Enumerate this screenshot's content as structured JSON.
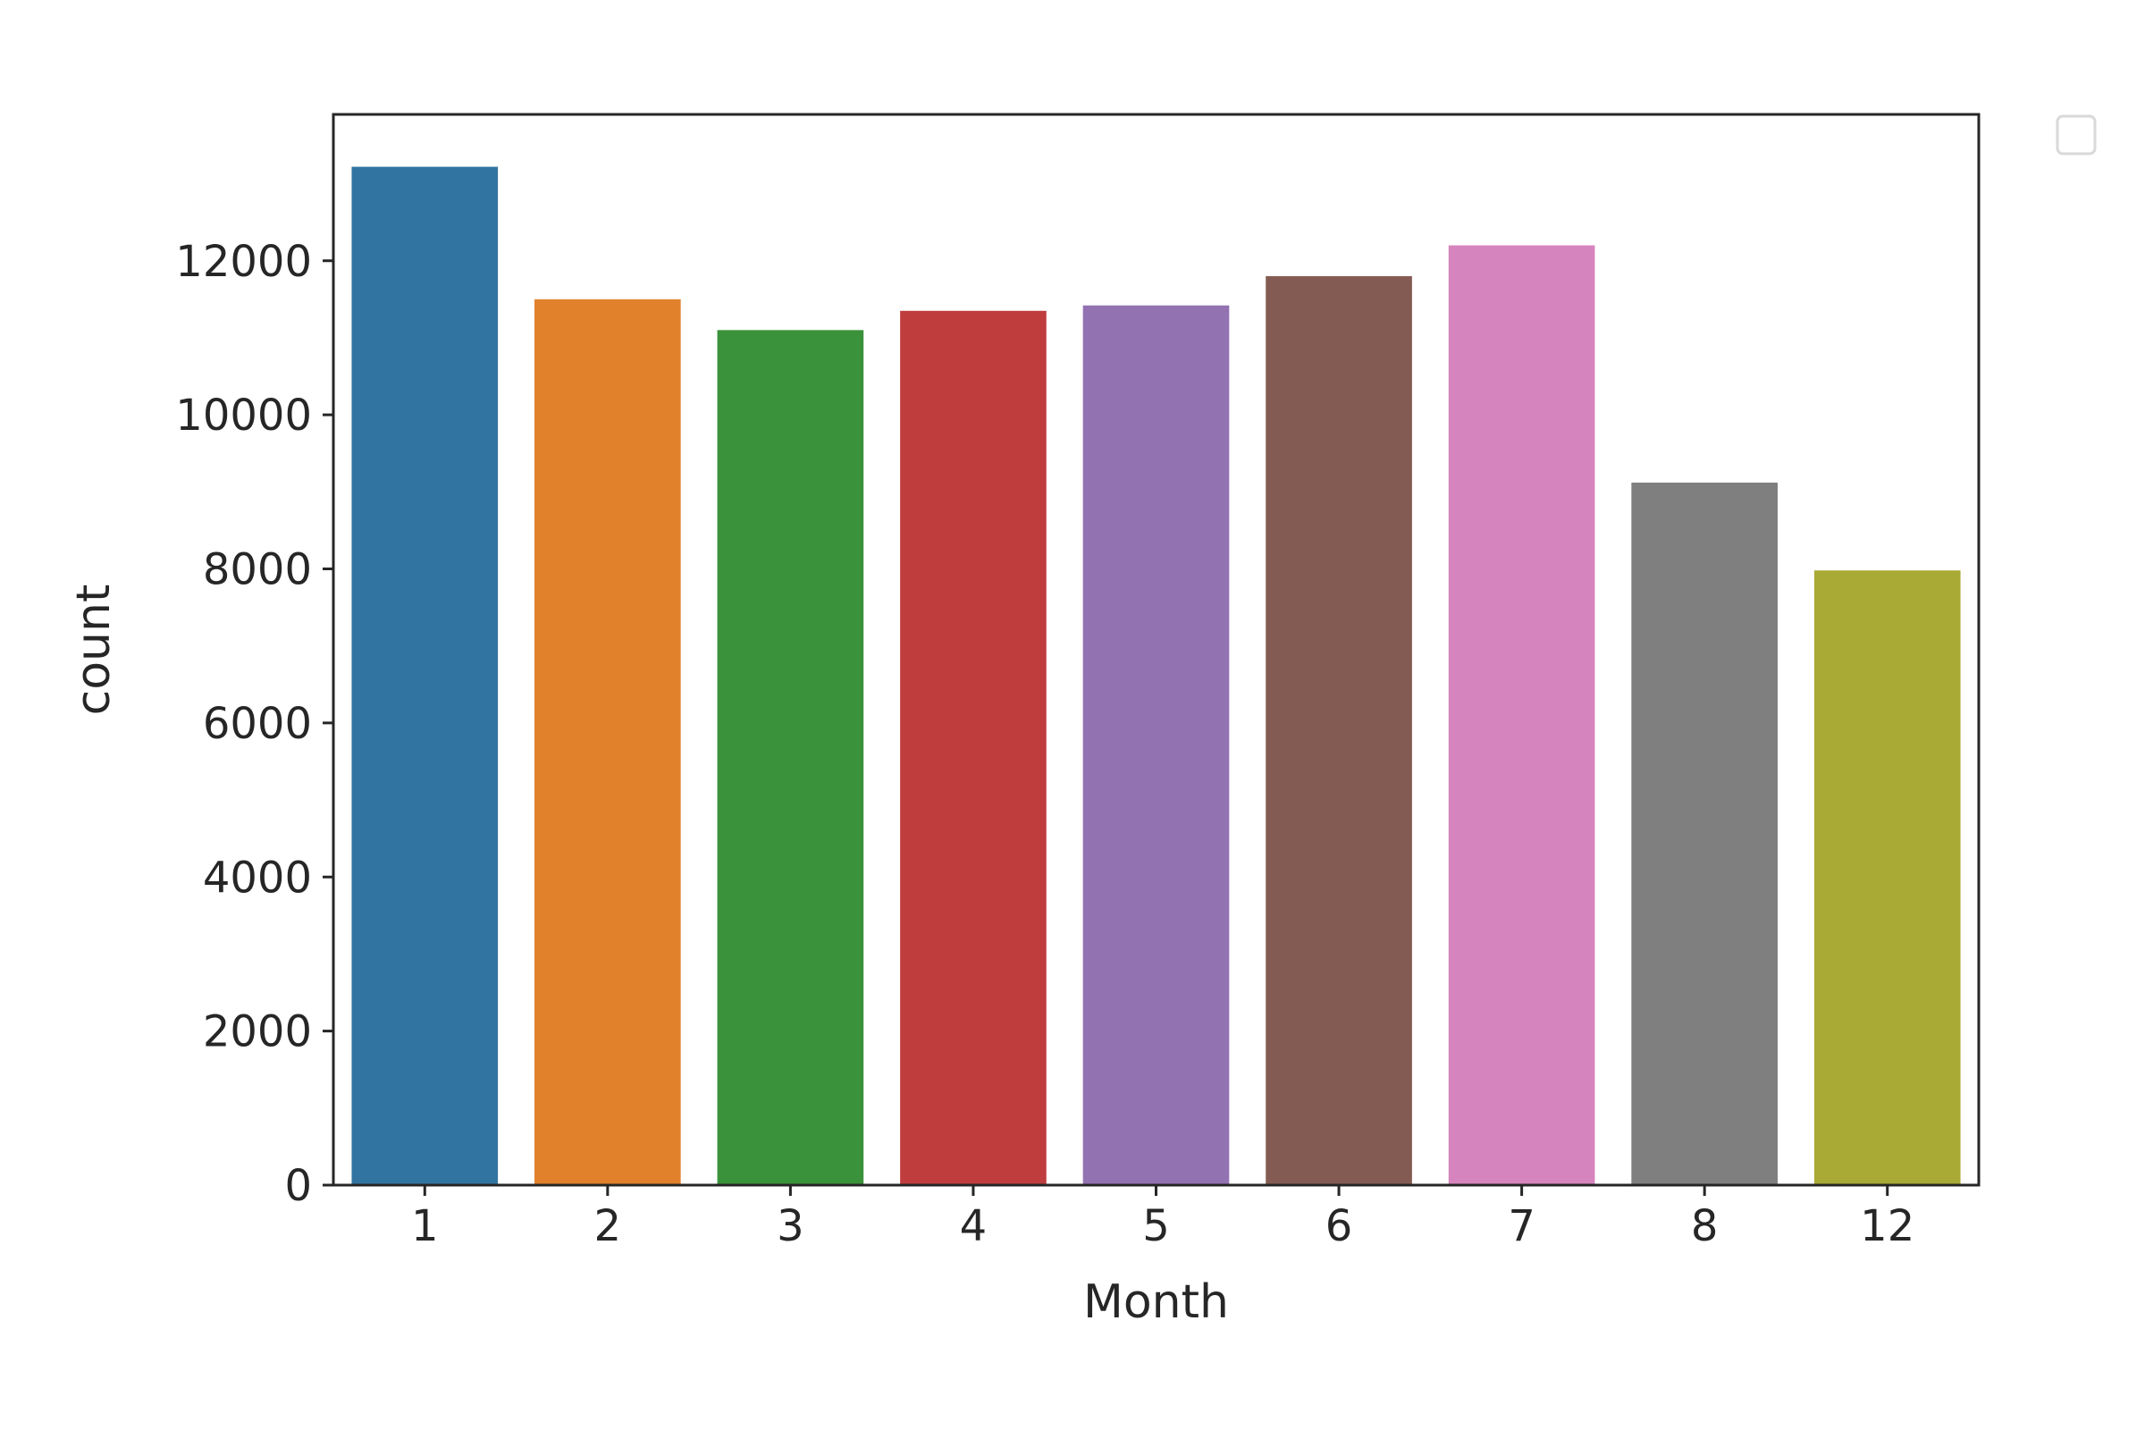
{
  "chart_data": {
    "type": "bar",
    "categories": [
      "1",
      "2",
      "3",
      "4",
      "5",
      "6",
      "7",
      "8",
      "12"
    ],
    "values": [
      13220,
      11500,
      11100,
      11350,
      11420,
      11800,
      12200,
      9120,
      7980
    ],
    "colors": [
      "#3274a1",
      "#e1812c",
      "#3a923a",
      "#c03d3e",
      "#9372b2",
      "#845b53",
      "#d684bd",
      "#7f7f7f",
      "#a9aa35"
    ],
    "title": "",
    "xlabel": "Month",
    "ylabel": "count",
    "ylim": [
      0,
      13900
    ],
    "yticks": [
      0,
      2000,
      4000,
      6000,
      8000,
      10000,
      12000
    ],
    "ytick_labels": [
      "0",
      "2000",
      "4000",
      "6000",
      "8000",
      "10000",
      "12000"
    ],
    "grid": false,
    "legend": {
      "visible": true,
      "placement": "upper-right-outside",
      "entries": []
    }
  }
}
